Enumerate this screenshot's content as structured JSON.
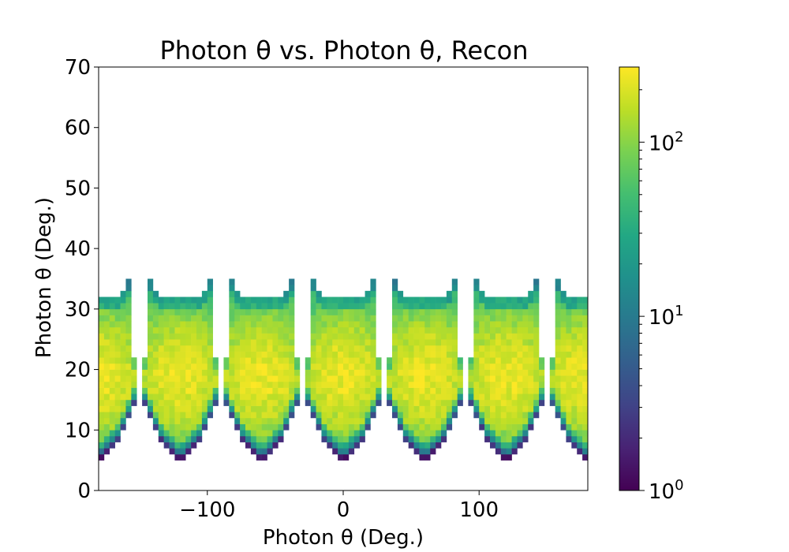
{
  "chart_data": {
    "type": "heatmap",
    "title_main": "Photon θ vs. Photon θ, Recon",
    "xlabel": "Photon θ (Deg.)",
    "ylabel": "Photon θ (Deg.)",
    "xlim": [
      -180,
      180
    ],
    "ylim": [
      0,
      70
    ],
    "x_ticks": [
      "−100",
      "0",
      "100"
    ],
    "x_tick_values": [
      -100,
      0,
      100
    ],
    "y_ticks": [
      "0",
      "10",
      "20",
      "30",
      "40",
      "50",
      "60",
      "70"
    ],
    "y_tick_values": [
      0,
      10,
      20,
      30,
      40,
      50,
      60,
      70
    ],
    "colorscale": "viridis",
    "color_scale_type": "log",
    "color_range": [
      1,
      270
    ],
    "colorbar_ticks": [
      {
        "base": "10",
        "exp": "0",
        "value": 1
      },
      {
        "base": "10",
        "exp": "1",
        "value": 10
      },
      {
        "base": "10",
        "exp": "2",
        "value": 100
      }
    ],
    "grid": false,
    "bin_width_x": 4,
    "bin_width_y": 1,
    "sectors": [
      {
        "center": -180,
        "x_range": [
          -160,
          160
        ]
      },
      {
        "center": -120,
        "x_range": [
          -148,
          -92
        ]
      },
      {
        "center": -60,
        "x_range": [
          -88,
          -32
        ]
      },
      {
        "center": 0,
        "x_range": [
          -28,
          28
        ]
      },
      {
        "center": 60,
        "x_range": [
          32,
          88
        ]
      },
      {
        "center": 120,
        "x_range": [
          92,
          148
        ]
      },
      {
        "center": 180,
        "x_range": [
          152,
          -152
        ]
      }
    ],
    "theta_range": [
      5,
      35
    ],
    "peak_theta": 19,
    "peak_counts": 230
  }
}
